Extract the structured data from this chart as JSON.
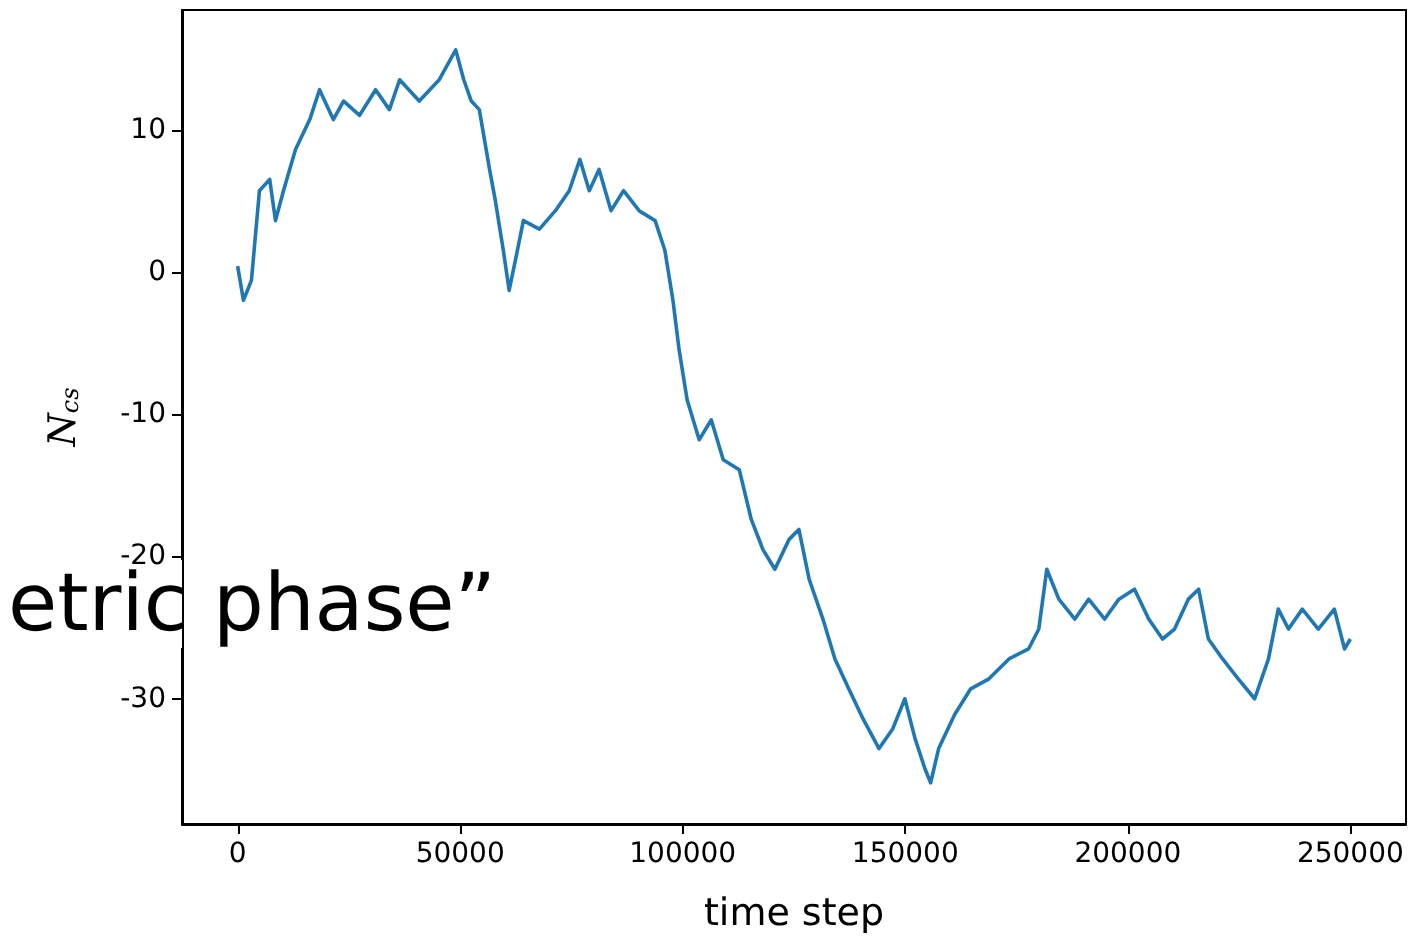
{
  "chart_data": {
    "type": "line",
    "xlabel": "time step",
    "ylabel": "N$_{cs}$",
    "annotations": [
      "etric phase”"
    ],
    "x": [
      0,
      1300,
      3100,
      4900,
      7200,
      8500,
      10300,
      13000,
      16200,
      18400,
      21500,
      23800,
      27400,
      31000,
      34100,
      36400,
      40800,
      45300,
      49000,
      50800,
      52500,
      54300,
      56600,
      57900,
      59700,
      61000,
      62400,
      64200,
      67800,
      71400,
      74500,
      76900,
      79000,
      81200,
      83900,
      86700,
      90200,
      93800,
      96000,
      97800,
      99200,
      101000,
      103700,
      106400,
      109100,
      112700,
      115400,
      118000,
      120700,
      123900,
      126100,
      128400,
      131500,
      134200,
      137300,
      140500,
      144100,
      147200,
      149900,
      152200,
      154400,
      155700,
      157500,
      161100,
      164700,
      168800,
      173300,
      177700,
      180000,
      181800,
      184500,
      188100,
      191200,
      194800,
      198000,
      201500,
      204700,
      207800,
      210500,
      213600,
      215900,
      218100,
      221300,
      224800,
      228500,
      231600,
      233800,
      236100,
      239200,
      242800,
      246400,
      248700,
      250000
    ],
    "series": [
      {
        "color": "#1f77b4",
        "values": [
          0.4,
          -2,
          -0.6,
          5.7,
          6.5,
          3.6,
          5.7,
          8.6,
          10.7,
          12.8,
          10.7,
          12,
          11,
          12.8,
          11.4,
          13.5,
          12,
          13.5,
          15.6,
          13.5,
          12,
          11.4,
          7.2,
          5,
          1.5,
          -1.3,
          0.8,
          3.6,
          3,
          4.3,
          5.7,
          7.9,
          5.7,
          7.2,
          4.3,
          5.7,
          4.3,
          3.6,
          1.5,
          -2,
          -5.5,
          -9,
          -11.8,
          -10.4,
          -13.2,
          -13.9,
          -17.4,
          -19.5,
          -20.9,
          -18.8,
          -18.1,
          -21.6,
          -24.4,
          -27.2,
          -29.3,
          -31.4,
          -33.5,
          -32.1,
          -30,
          -32.8,
          -34.9,
          -35.9,
          -33.5,
          -31.1,
          -29.3,
          -28.6,
          -27.2,
          -26.5,
          -25.1,
          -20.9,
          -23,
          -24.4,
          -23,
          -24.4,
          -23,
          -22.3,
          -24.4,
          -25.8,
          -25.1,
          -23,
          -22.3,
          -25.8,
          -27.2,
          -28.6,
          -30,
          -27.2,
          -23.7,
          -25.1,
          -23.7,
          -25.1,
          -23.7,
          -26.5,
          -25.8
        ]
      }
    ],
    "xlim": [
      -12500,
      262500
    ],
    "xticks": [
      0,
      50000,
      100000,
      150000,
      200000,
      250000
    ],
    "ylim": [
      -38.8,
      18.4
    ],
    "yticks": [
      -30,
      -20,
      -10,
      0,
      10
    ],
    "grid": false,
    "marker": "none",
    "line_style": "solid"
  }
}
